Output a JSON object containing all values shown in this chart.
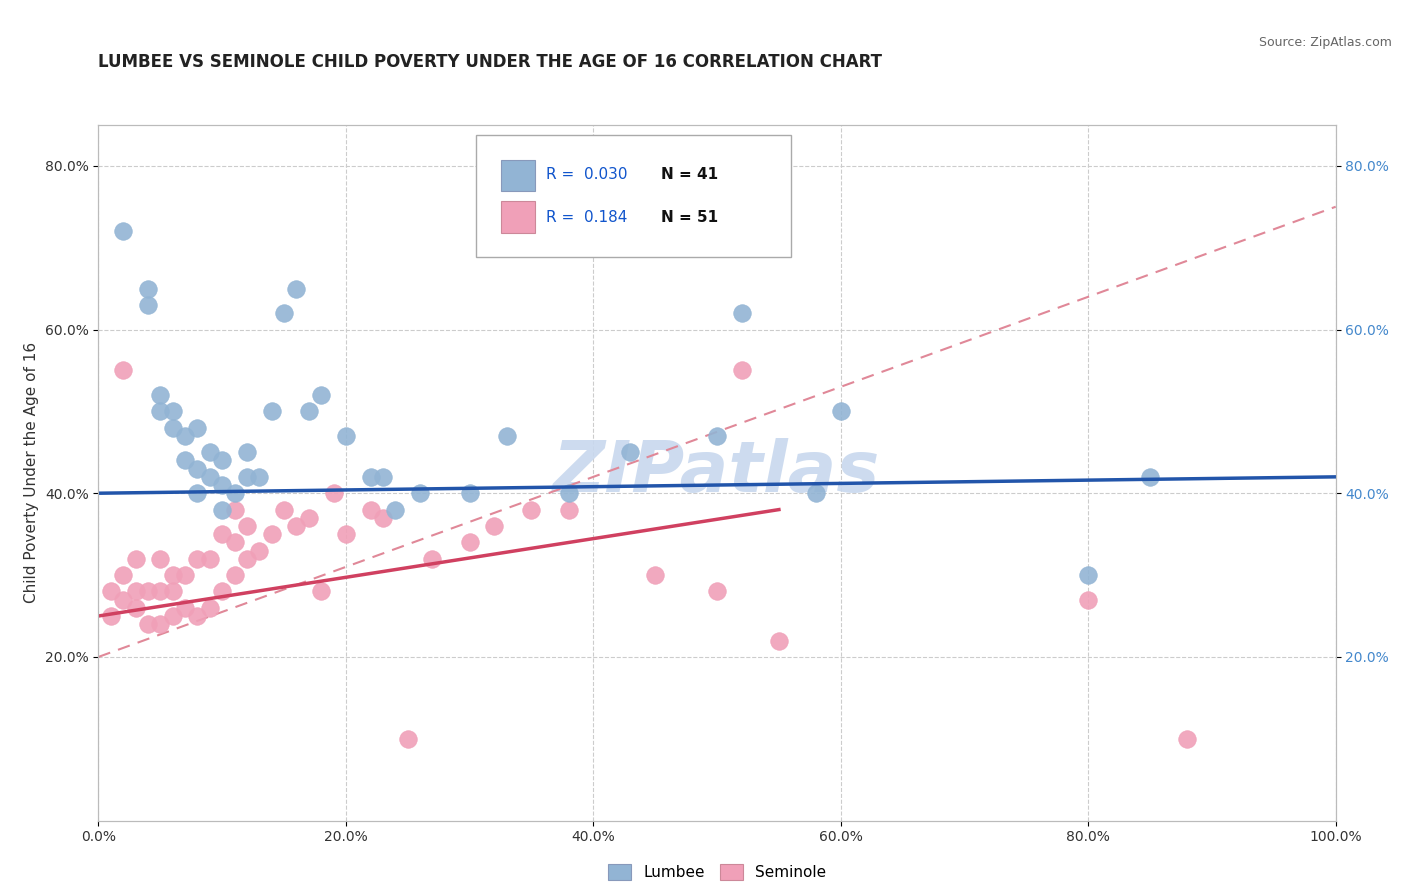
{
  "title": "LUMBEE VS SEMINOLE CHILD POVERTY UNDER THE AGE OF 16 CORRELATION CHART",
  "source": "Source: ZipAtlas.com",
  "ylabel": "Child Poverty Under the Age of 16",
  "xlim": [
    0.0,
    1.0
  ],
  "ylim": [
    0.0,
    0.85
  ],
  "xticks": [
    0.0,
    0.2,
    0.4,
    0.6,
    0.8,
    1.0
  ],
  "xticklabels": [
    "0.0%",
    "20.0%",
    "40.0%",
    "60.0%",
    "80.0%",
    "100.0%"
  ],
  "yticks": [
    0.2,
    0.4,
    0.6,
    0.8
  ],
  "yticklabels": [
    "20.0%",
    "40.0%",
    "60.0%",
    "80.0%"
  ],
  "legend_r_lumbee": "0.030",
  "legend_n_lumbee": "41",
  "legend_r_seminole": "0.184",
  "legend_n_seminole": "51",
  "lumbee_color": "#92b4d4",
  "seminole_color": "#f0a0b8",
  "lumbee_line_color": "#2255aa",
  "seminole_line_color": "#d04060",
  "dashed_line_color": "#e08898",
  "watermark_color": "#c8d8ee",
  "background_color": "#ffffff",
  "grid_color": "#cccccc",
  "right_tick_color": "#4488cc",
  "lumbee_scatter_x": [
    0.02,
    0.04,
    0.04,
    0.05,
    0.05,
    0.06,
    0.06,
    0.07,
    0.07,
    0.08,
    0.08,
    0.08,
    0.09,
    0.09,
    0.1,
    0.1,
    0.1,
    0.11,
    0.12,
    0.12,
    0.13,
    0.14,
    0.15,
    0.16,
    0.17,
    0.18,
    0.2,
    0.22,
    0.23,
    0.24,
    0.26,
    0.3,
    0.33,
    0.38,
    0.43,
    0.5,
    0.52,
    0.58,
    0.6,
    0.8,
    0.85
  ],
  "lumbee_scatter_y": [
    0.72,
    0.65,
    0.63,
    0.52,
    0.5,
    0.5,
    0.48,
    0.47,
    0.44,
    0.4,
    0.43,
    0.48,
    0.42,
    0.45,
    0.38,
    0.41,
    0.44,
    0.4,
    0.42,
    0.45,
    0.42,
    0.5,
    0.62,
    0.65,
    0.5,
    0.52,
    0.47,
    0.42,
    0.42,
    0.38,
    0.4,
    0.4,
    0.47,
    0.4,
    0.45,
    0.47,
    0.62,
    0.4,
    0.5,
    0.3,
    0.42
  ],
  "seminole_scatter_x": [
    0.01,
    0.01,
    0.02,
    0.02,
    0.02,
    0.03,
    0.03,
    0.03,
    0.04,
    0.04,
    0.05,
    0.05,
    0.05,
    0.06,
    0.06,
    0.06,
    0.07,
    0.07,
    0.08,
    0.08,
    0.09,
    0.09,
    0.1,
    0.1,
    0.11,
    0.11,
    0.11,
    0.12,
    0.12,
    0.13,
    0.14,
    0.15,
    0.16,
    0.17,
    0.18,
    0.19,
    0.2,
    0.22,
    0.23,
    0.25,
    0.27,
    0.3,
    0.32,
    0.35,
    0.38,
    0.45,
    0.5,
    0.52,
    0.55,
    0.8,
    0.88
  ],
  "seminole_scatter_y": [
    0.28,
    0.25,
    0.3,
    0.27,
    0.55,
    0.26,
    0.28,
    0.32,
    0.24,
    0.28,
    0.24,
    0.28,
    0.32,
    0.25,
    0.28,
    0.3,
    0.26,
    0.3,
    0.25,
    0.32,
    0.26,
    0.32,
    0.28,
    0.35,
    0.3,
    0.34,
    0.38,
    0.32,
    0.36,
    0.33,
    0.35,
    0.38,
    0.36,
    0.37,
    0.28,
    0.4,
    0.35,
    0.38,
    0.37,
    0.1,
    0.32,
    0.34,
    0.36,
    0.38,
    0.38,
    0.3,
    0.28,
    0.55,
    0.22,
    0.27,
    0.1
  ],
  "lumbee_trendline_x0": 0.0,
  "lumbee_trendline_x1": 1.0,
  "lumbee_trendline_y0": 0.4,
  "lumbee_trendline_y1": 0.42,
  "seminole_trendline_x0": 0.0,
  "seminole_trendline_x1": 0.55,
  "seminole_trendline_y0": 0.25,
  "seminole_trendline_y1": 0.38,
  "dashed_trendline_x0": 0.0,
  "dashed_trendline_x1": 1.0,
  "dashed_trendline_y0": 0.2,
  "dashed_trendline_y1": 0.75
}
